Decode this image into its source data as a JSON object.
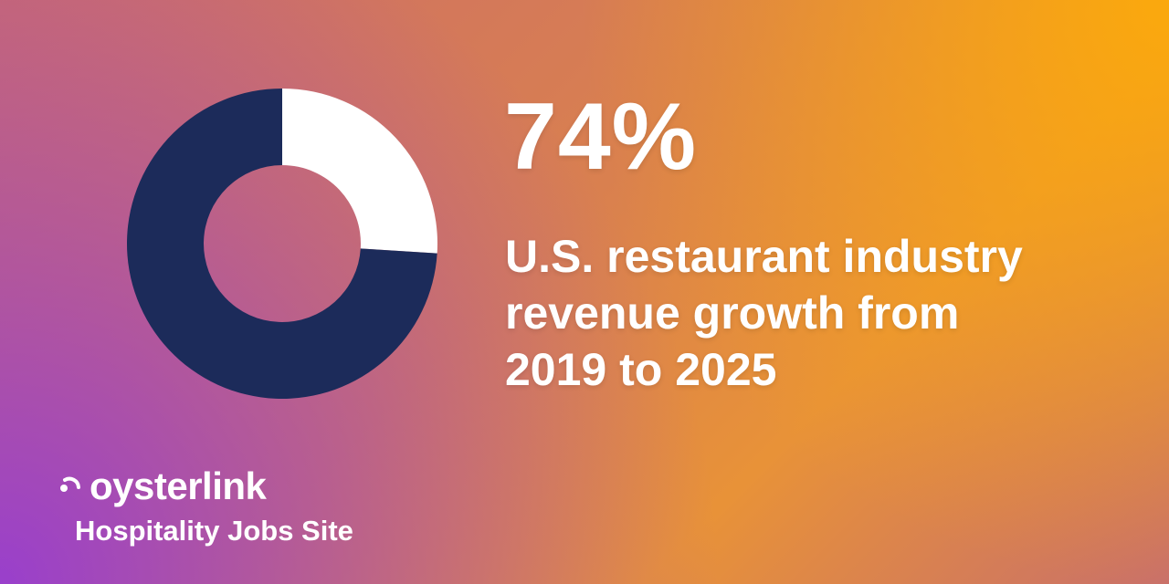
{
  "chart_data": {
    "type": "pie",
    "style": "donut",
    "slices": [
      {
        "value": 74,
        "color": "#1c2b5a"
      },
      {
        "value": 26,
        "color": "#ffffff"
      }
    ],
    "headline_value": "74%",
    "caption_lines": [
      "U.S. restaurant industry",
      "revenue growth from",
      "2019 to 2025"
    ]
  },
  "brand": {
    "name": "oysterlink",
    "tagline": "Hospitality Jobs Site",
    "icon": "oysterlink-logo-icon"
  },
  "colors": {
    "navy": "#1c2b5a",
    "white": "#ffffff",
    "orange": "#f5a214",
    "purple": "#9a45c4"
  }
}
